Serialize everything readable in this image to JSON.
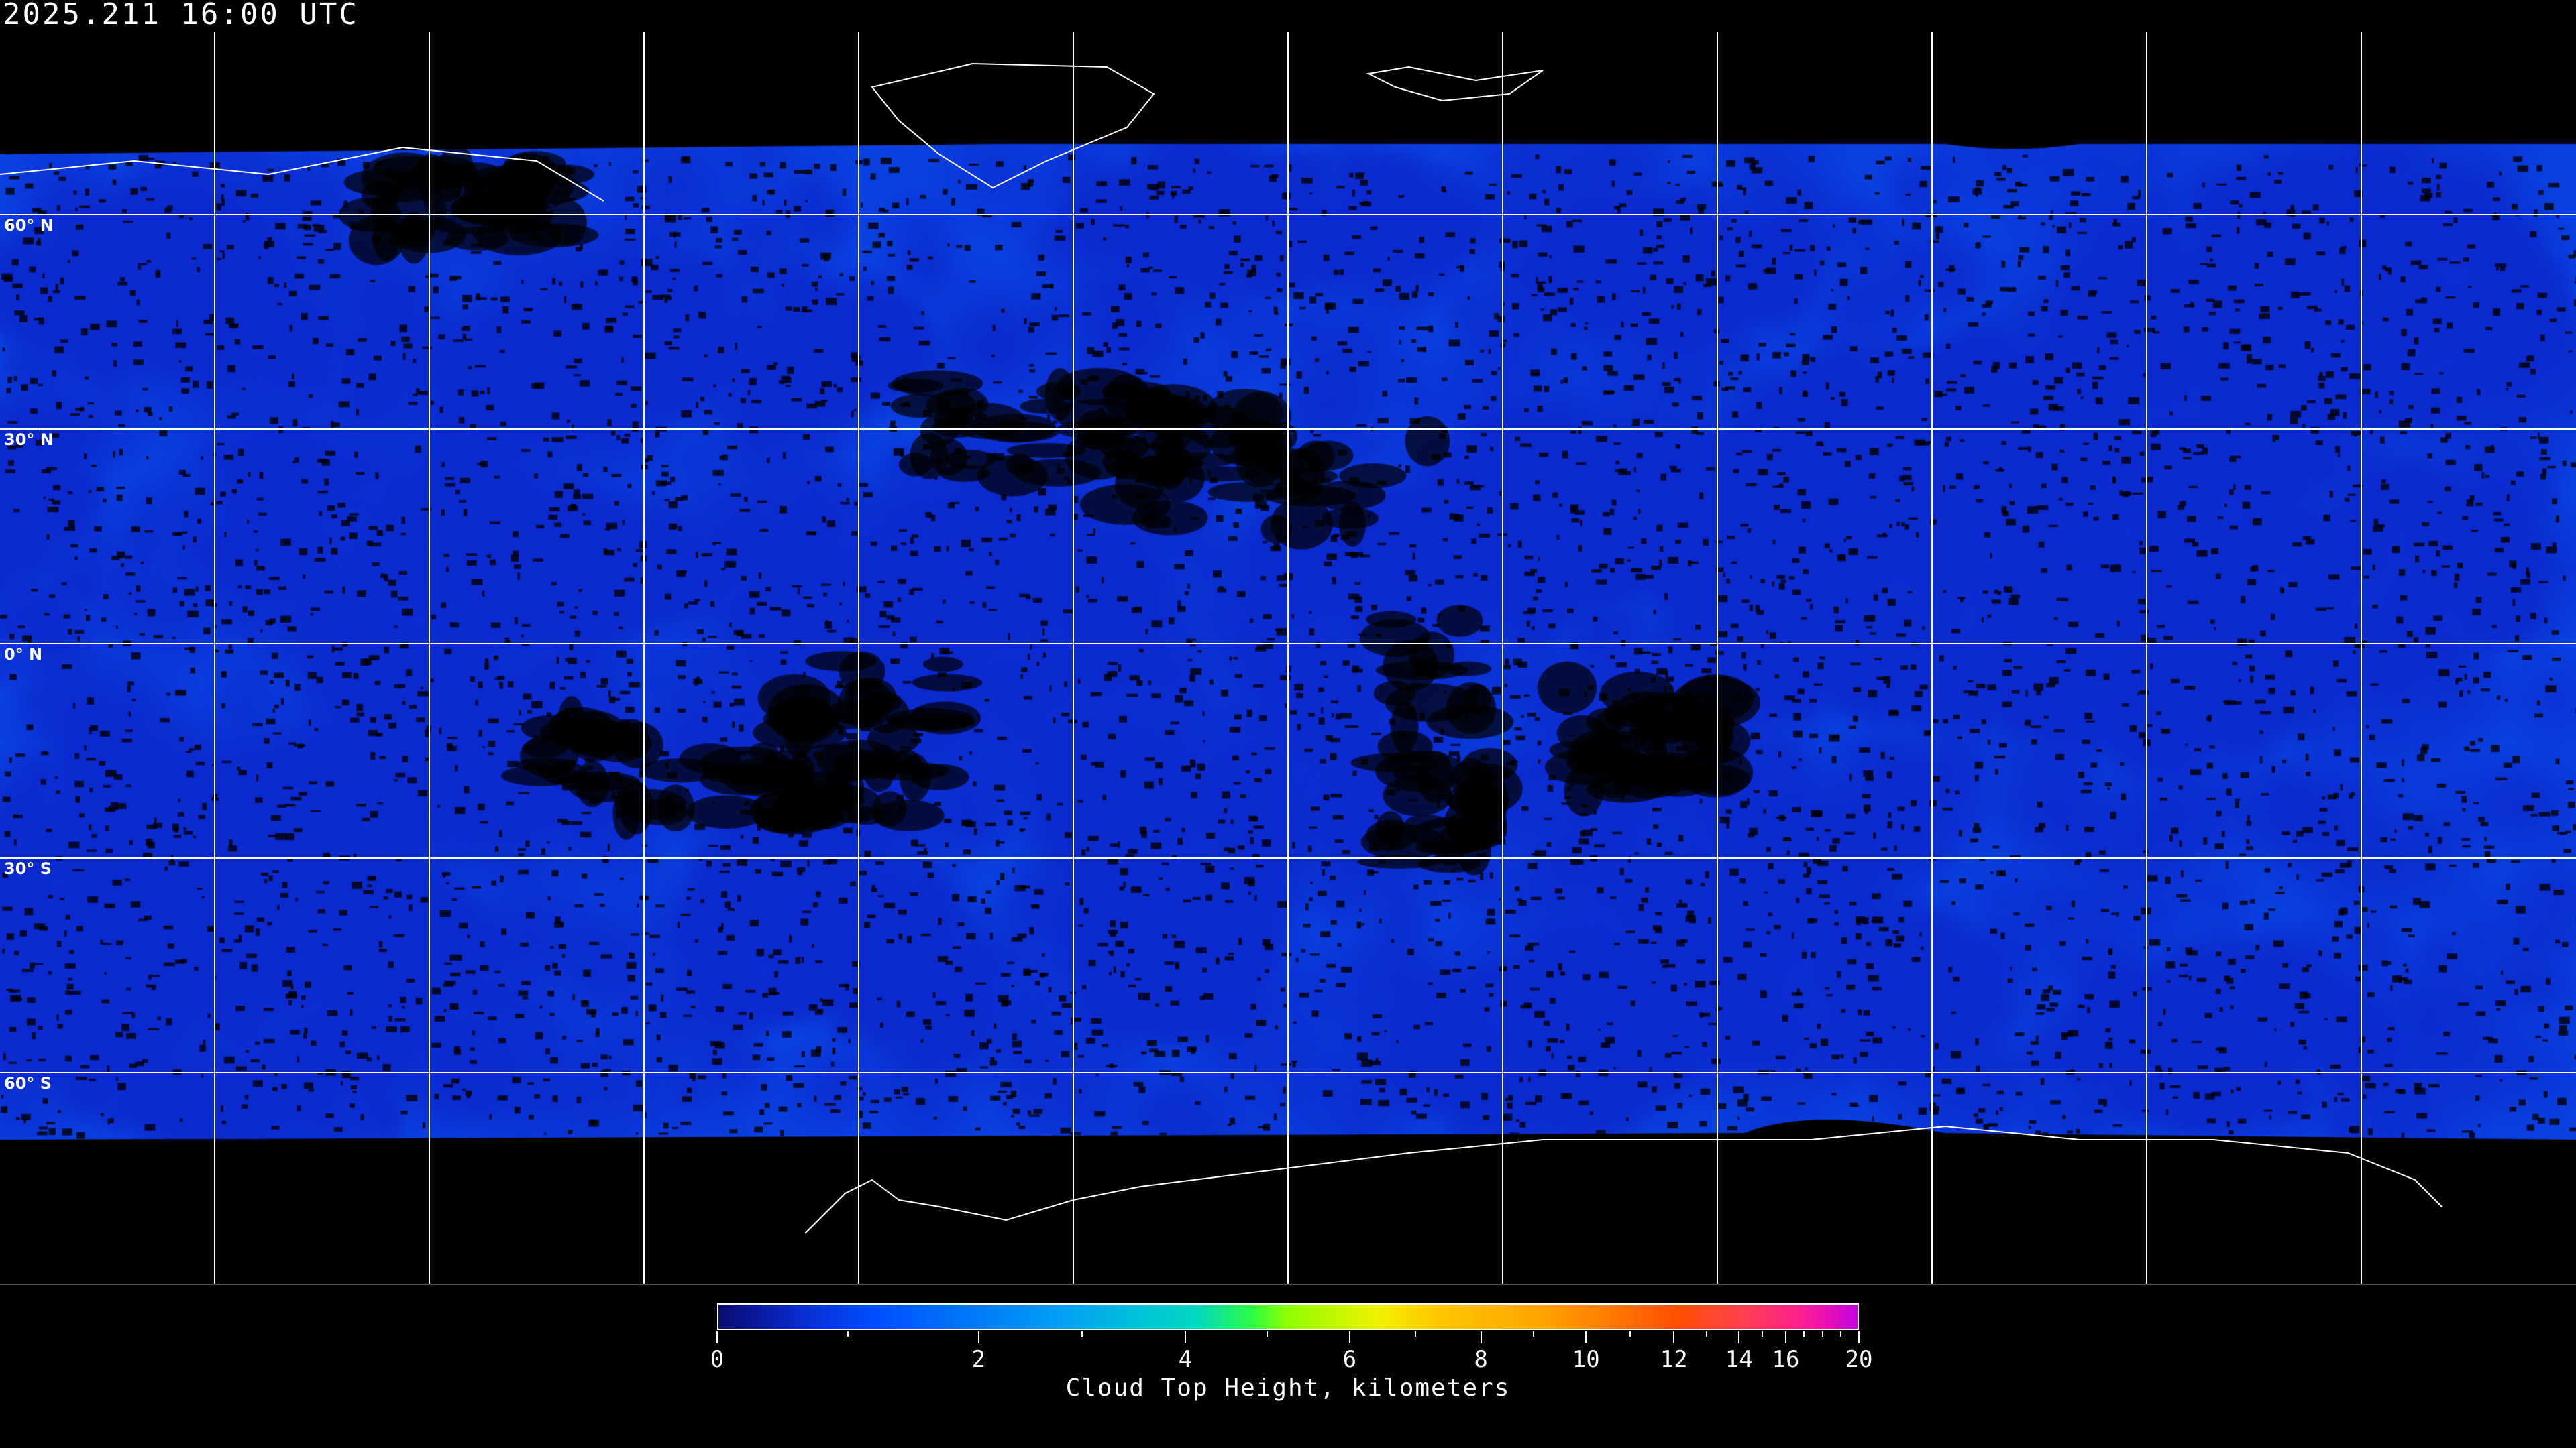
{
  "header": {
    "timestamp": "2025.211 16:00 UTC"
  },
  "map": {
    "projection": "equirectangular",
    "grid_interval_degrees": 30,
    "latitude_labels": [
      "60° N",
      "30° N",
      "0° N",
      "30° S",
      "60° S"
    ],
    "no_data_color": "#000000",
    "gridline_color": "#ffffff"
  },
  "colorbar": {
    "title": "Cloud Top Height, kilometers",
    "min": 0,
    "max": 20,
    "major_ticks": [
      "0",
      "2",
      "4",
      "6",
      "8",
      "10",
      "12",
      "14",
      "16",
      "20"
    ],
    "minor_ticks": [
      1,
      3,
      5,
      7,
      9,
      11,
      13,
      15,
      17,
      18,
      19
    ],
    "color_stops": [
      "#0a0c6e",
      "#0a2ad0",
      "#0050ff",
      "#00a0f5",
      "#00d8c0",
      "#30ff40",
      "#90ff00",
      "#f0f000",
      "#ffc800",
      "#ffa000",
      "#ff5000",
      "#ff4050",
      "#ff2090",
      "#c800e0"
    ]
  }
}
